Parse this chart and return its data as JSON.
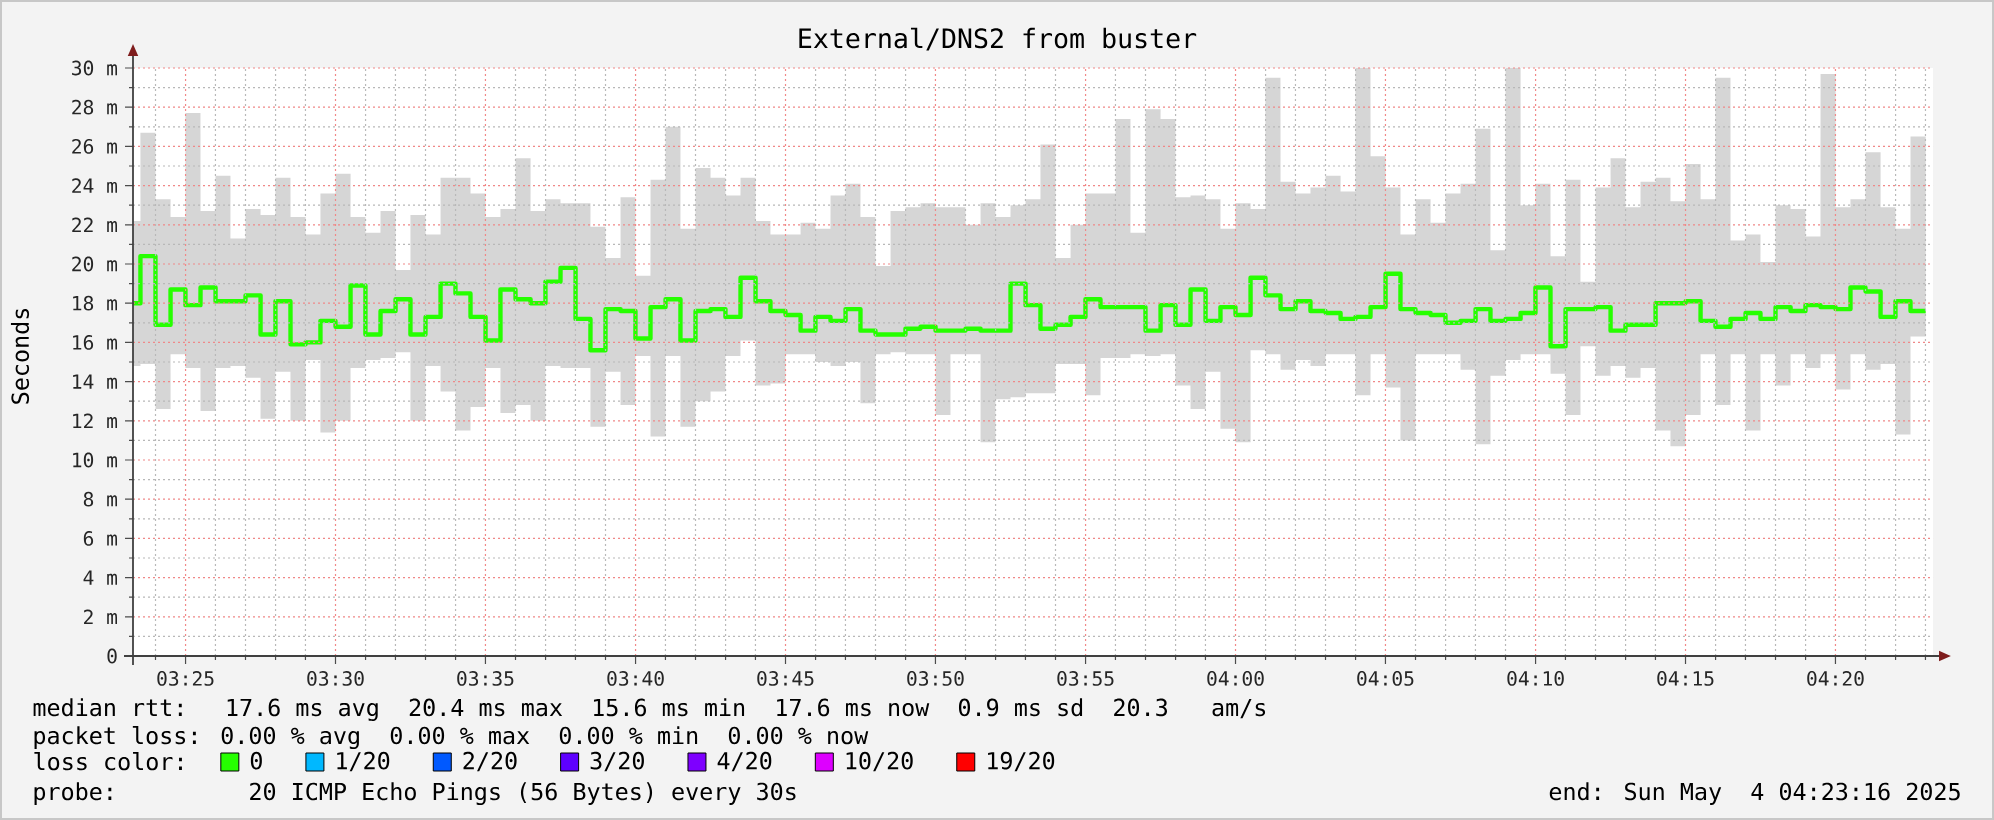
{
  "chart_data": {
    "type": "step",
    "title": "External/DNS2 from buster",
    "ylabel": "Seconds",
    "x": [
      3.3875,
      3.3958,
      3.4042,
      3.4125,
      3.4208,
      3.4292,
      3.4375,
      3.4458,
      3.4542,
      3.4625,
      3.4708,
      3.4792,
      3.4875,
      3.4958,
      3.5042,
      3.5125,
      3.5208,
      3.5292,
      3.5375,
      3.5458,
      3.5542,
      3.5625,
      3.5708,
      3.5792,
      3.5875,
      3.5958,
      3.6042,
      3.6125,
      3.6208,
      3.6292,
      3.6375,
      3.6458,
      3.6542,
      3.6625,
      3.6708,
      3.6792,
      3.6875,
      3.6958,
      3.7042,
      3.7125,
      3.7208,
      3.7292,
      3.7375,
      3.7458,
      3.7542,
      3.7625,
      3.7708,
      3.7792,
      3.7875,
      3.7958,
      3.8042,
      3.8125,
      3.8208,
      3.8292,
      3.8375,
      3.8458,
      3.8542,
      3.8625,
      3.8708,
      3.8792,
      3.8875,
      3.8958,
      3.9042,
      3.9125,
      3.9208,
      3.9292,
      3.9375,
      3.9458,
      3.9542,
      3.9625,
      3.9708,
      3.9792,
      3.9875,
      3.9958,
      4.0042,
      4.0125,
      4.0208,
      4.0292,
      4.0375,
      4.0458,
      4.0542,
      4.0625,
      4.0708,
      4.0792,
      4.0875,
      4.0958,
      4.1042,
      4.1125,
      4.1208,
      4.1292,
      4.1375,
      4.1458,
      4.1542,
      4.1625,
      4.1708,
      4.1792,
      4.1875,
      4.1958,
      4.2042,
      4.2125,
      4.2208,
      4.2292,
      4.2375,
      4.2458,
      4.2542,
      4.2625,
      4.2708,
      4.2792,
      4.2875,
      4.2958,
      4.3042,
      4.3125,
      4.3208,
      4.3292,
      4.3375,
      4.3458,
      4.3542,
      4.3625,
      4.3708,
      4.3792
    ],
    "xlim": [
      3.3875,
      4.3875
    ],
    "ylim": [
      0,
      30
    ],
    "xticks": [
      {
        "value": 3.4,
        "label": null
      },
      {
        "value": 3.4167,
        "label": "03:25"
      },
      {
        "value": 3.4333,
        "label": null
      },
      {
        "value": 3.45,
        "label": null
      },
      {
        "value": 3.4667,
        "label": null
      },
      {
        "value": 3.4833,
        "label": null
      },
      {
        "value": 3.5,
        "label": "03:30"
      },
      {
        "value": 3.5167,
        "label": null
      },
      {
        "value": 3.5333,
        "label": null
      },
      {
        "value": 3.55,
        "label": null
      },
      {
        "value": 3.5667,
        "label": null
      },
      {
        "value": 3.5833,
        "label": "03:35"
      },
      {
        "value": 3.6,
        "label": null
      },
      {
        "value": 3.6167,
        "label": null
      },
      {
        "value": 3.6333,
        "label": null
      },
      {
        "value": 3.65,
        "label": null
      },
      {
        "value": 3.6667,
        "label": "03:40"
      },
      {
        "value": 3.6833,
        "label": null
      },
      {
        "value": 3.7,
        "label": null
      },
      {
        "value": 3.7167,
        "label": null
      },
      {
        "value": 3.7333,
        "label": null
      },
      {
        "value": 3.75,
        "label": "03:45"
      },
      {
        "value": 3.7667,
        "label": null
      },
      {
        "value": 3.7833,
        "label": null
      },
      {
        "value": 3.8,
        "label": null
      },
      {
        "value": 3.8167,
        "label": null
      },
      {
        "value": 3.8333,
        "label": "03:50"
      },
      {
        "value": 3.85,
        "label": null
      },
      {
        "value": 3.8667,
        "label": null
      },
      {
        "value": 3.8833,
        "label": null
      },
      {
        "value": 3.9,
        "label": null
      },
      {
        "value": 3.9167,
        "label": "03:55"
      },
      {
        "value": 3.9333,
        "label": null
      },
      {
        "value": 3.95,
        "label": null
      },
      {
        "value": 3.9667,
        "label": null
      },
      {
        "value": 3.9833,
        "label": null
      },
      {
        "value": 4,
        "label": "04:00"
      },
      {
        "value": 4.0167,
        "label": null
      },
      {
        "value": 4.0333,
        "label": null
      },
      {
        "value": 4.05,
        "label": null
      },
      {
        "value": 4.0667,
        "label": null
      },
      {
        "value": 4.0833,
        "label": "04:05"
      },
      {
        "value": 4.1,
        "label": null
      },
      {
        "value": 4.1167,
        "label": null
      },
      {
        "value": 4.1333,
        "label": null
      },
      {
        "value": 4.15,
        "label": null
      },
      {
        "value": 4.1667,
        "label": "04:10"
      },
      {
        "value": 4.1833,
        "label": null
      },
      {
        "value": 4.2,
        "label": null
      },
      {
        "value": 4.2167,
        "label": null
      },
      {
        "value": 4.2333,
        "label": null
      },
      {
        "value": 4.25,
        "label": "04:15"
      },
      {
        "value": 4.2667,
        "label": null
      },
      {
        "value": 4.2833,
        "label": null
      },
      {
        "value": 4.3,
        "label": null
      },
      {
        "value": 4.3167,
        "label": null
      },
      {
        "value": 4.3333,
        "label": "04:20"
      },
      {
        "value": 4.35,
        "label": null
      },
      {
        "value": 4.3667,
        "label": null
      },
      {
        "value": 4.3833,
        "label": null
      }
    ],
    "yticks": [
      0,
      {
        "value": 1,
        "label": null
      },
      {
        "value": 2,
        "label": "2 m"
      },
      {
        "value": 3,
        "label": null
      },
      {
        "value": 4,
        "label": "4 m"
      },
      {
        "value": 5,
        "label": null
      },
      {
        "value": 6,
        "label": "6 m"
      },
      {
        "value": 7,
        "label": null
      },
      {
        "value": 8,
        "label": "8 m"
      },
      {
        "value": 9,
        "label": null
      },
      {
        "value": 10,
        "label": "10 m"
      },
      {
        "value": 11,
        "label": null
      },
      {
        "value": 12,
        "label": "12 m"
      },
      {
        "value": 13,
        "label": null
      },
      {
        "value": 14,
        "label": "14 m"
      },
      {
        "value": 15,
        "label": null
      },
      {
        "value": 16,
        "label": "16 m"
      },
      {
        "value": 17,
        "label": null
      },
      {
        "value": 18,
        "label": "18 m"
      },
      {
        "value": 19,
        "label": null
      },
      {
        "value": 20,
        "label": "20 m"
      },
      {
        "value": 21,
        "label": null
      },
      {
        "value": 22,
        "label": "22 m"
      },
      {
        "value": 23,
        "label": null
      },
      {
        "value": 24,
        "label": "24 m"
      },
      {
        "value": 25,
        "label": null
      },
      {
        "value": 26,
        "label": "26 m"
      },
      {
        "value": 27,
        "label": null
      },
      {
        "value": 28,
        "label": "28 m"
      },
      {
        "value": 29,
        "label": null
      },
      {
        "value": 30,
        "label": "30 m"
      }
    ],
    "grid": true,
    "legend": "bottom",
    "legend_title": "loss color:",
    "series": [
      {
        "name": "0",
        "color": "#26ff00",
        "values": [
          18.0,
          20.4,
          16.9,
          18.7,
          17.9,
          18.8,
          18.1,
          18.1,
          18.4,
          16.4,
          18.1,
          15.9,
          16.0,
          17.1,
          16.8,
          18.9,
          16.4,
          17.6,
          18.2,
          16.4,
          17.3,
          19.0,
          18.5,
          17.3,
          16.1,
          18.7,
          18.2,
          18.0,
          19.1,
          19.8,
          17.2,
          15.6,
          17.7,
          17.6,
          16.2,
          17.8,
          18.2,
          16.1,
          17.6,
          17.7,
          17.3,
          19.3,
          18.1,
          17.6,
          17.4,
          16.6,
          17.3,
          17.1,
          17.7,
          16.6,
          16.4,
          16.4,
          16.7,
          16.8,
          16.6,
          16.6,
          16.7,
          16.6,
          16.6,
          19.0,
          17.9,
          16.7,
          16.9,
          17.3,
          18.2,
          17.8,
          17.8,
          17.8,
          16.6,
          17.9,
          16.9,
          18.7,
          17.1,
          17.8,
          17.4,
          19.3,
          18.4,
          17.7,
          18.1,
          17.6,
          17.5,
          17.2,
          17.3,
          17.8,
          19.5,
          17.7,
          17.5,
          17.4,
          17.0,
          17.1,
          17.7,
          17.1,
          17.2,
          17.5,
          18.8,
          15.8,
          17.7,
          17.7,
          17.8,
          16.6,
          16.9,
          16.9,
          18.0,
          18.0,
          18.1,
          17.1,
          16.8,
          17.2,
          17.5,
          17.2,
          17.8,
          17.6,
          17.9,
          17.8,
          17.7,
          18.8,
          18.6,
          17.3,
          18.1,
          17.6
        ],
        "upper": [
          22.2,
          26.7,
          23.3,
          22.4,
          27.7,
          22.7,
          24.5,
          21.3,
          22.8,
          22.5,
          24.4,
          22.4,
          21.5,
          23.6,
          24.6,
          22.4,
          21.6,
          22.7,
          19.7,
          22.5,
          21.5,
          24.4,
          24.4,
          23.6,
          22.4,
          22.8,
          25.4,
          22.7,
          23.3,
          23.1,
          23.1,
          21.9,
          20.3,
          23.4,
          19.4,
          24.3,
          27.0,
          21.8,
          24.9,
          24.4,
          23.5,
          24.4,
          22.2,
          21.5,
          21.5,
          22.1,
          21.8,
          23.5,
          24.1,
          22.4,
          19.9,
          22.7,
          22.9,
          23.1,
          22.9,
          22.9,
          22.0,
          23.1,
          22.4,
          23.0,
          23.3,
          26.1,
          20.3,
          22.0,
          23.6,
          23.6,
          27.4,
          21.6,
          27.9,
          27.4,
          23.4,
          23.5,
          23.3,
          21.8,
          23.1,
          22.8,
          29.5,
          24.2,
          23.6,
          23.9,
          24.5,
          23.7,
          30.0,
          25.5,
          23.9,
          21.5,
          23.3,
          22.1,
          23.6,
          24.1,
          26.9,
          20.7,
          30.0,
          23.0,
          24.1,
          20.4,
          24.3,
          19.1,
          23.9,
          25.4,
          22.9,
          24.2,
          24.4,
          23.2,
          25.1,
          23.3,
          29.5,
          21.2,
          21.5,
          20.1,
          23.0,
          22.8,
          21.4,
          29.7,
          22.9,
          23.3,
          25.7,
          22.9,
          21.8,
          26.5
        ],
        "lower": [
          14.8,
          14.9,
          12.6,
          15.4,
          14.7,
          12.5,
          14.7,
          14.8,
          14.2,
          12.1,
          14.5,
          12.0,
          15.1,
          11.4,
          12.0,
          14.7,
          15.1,
          15.2,
          15.5,
          12.0,
          14.8,
          13.5,
          11.5,
          12.7,
          14.7,
          12.4,
          12.8,
          12.0,
          14.8,
          14.7,
          14.7,
          11.7,
          14.5,
          12.8,
          15.3,
          11.2,
          15.3,
          11.7,
          13.0,
          13.5,
          15.3,
          16.1,
          13.8,
          13.9,
          15.4,
          15.4,
          15.0,
          14.8,
          15.0,
          12.9,
          15.4,
          15.5,
          15.4,
          15.4,
          12.3,
          15.4,
          15.4,
          10.9,
          13.1,
          13.2,
          13.4,
          13.4,
          14.9,
          14.9,
          13.3,
          15.2,
          15.2,
          15.4,
          15.3,
          15.4,
          13.8,
          12.6,
          14.5,
          11.6,
          10.9,
          15.6,
          15.4,
          14.6,
          15.1,
          14.8,
          15.4,
          15.4,
          13.3,
          15.4,
          13.7,
          11.0,
          15.4,
          15.4,
          15.4,
          14.6,
          10.8,
          14.3,
          15.1,
          15.4,
          15.4,
          14.4,
          12.3,
          15.8,
          14.3,
          14.8,
          14.2,
          14.7,
          11.5,
          10.7,
          12.3,
          15.4,
          12.8,
          15.4,
          11.5,
          15.4,
          13.8,
          15.4,
          14.7,
          15.4,
          13.6,
          15.4,
          14.6,
          14.9,
          11.3,
          16.3
        ]
      },
      {
        "name": "1/20",
        "color": "#00b8ff",
        "values": [
          null,
          null,
          null,
          null,
          null,
          null,
          null,
          null,
          null,
          null,
          null,
          null,
          null,
          null,
          null,
          null,
          null,
          null,
          null,
          null,
          null,
          null,
          null,
          null,
          null,
          null,
          null,
          null,
          null,
          null,
          null,
          null,
          null,
          null,
          null,
          null,
          null,
          null,
          null,
          null,
          null,
          null,
          null,
          null,
          null,
          null,
          null,
          null,
          null,
          null,
          null,
          null,
          null,
          null,
          null,
          null,
          null,
          null,
          null,
          null,
          null,
          null,
          null,
          null,
          null,
          null,
          null,
          null,
          null,
          null,
          null,
          null,
          null,
          null,
          null,
          null,
          null,
          null,
          null,
          null,
          null,
          null,
          null,
          null,
          null,
          null,
          null,
          null,
          null,
          null,
          null,
          null,
          null,
          null,
          null,
          null,
          null,
          null,
          null,
          null,
          null,
          null,
          null,
          null,
          null,
          null,
          null,
          null,
          null,
          null,
          null,
          null,
          null,
          null,
          null,
          null,
          null,
          null,
          null,
          null
        ]
      },
      {
        "name": "2/20",
        "color": "#0059ff",
        "values": [
          null,
          null,
          null,
          null,
          null,
          null,
          null,
          null,
          null,
          null,
          null,
          null,
          null,
          null,
          null,
          null,
          null,
          null,
          null,
          null,
          null,
          null,
          null,
          null,
          null,
          null,
          null,
          null,
          null,
          null,
          null,
          null,
          null,
          null,
          null,
          null,
          null,
          null,
          null,
          null,
          null,
          null,
          null,
          null,
          null,
          null,
          null,
          null,
          null,
          null,
          null,
          null,
          null,
          null,
          null,
          null,
          null,
          null,
          null,
          null,
          null,
          null,
          null,
          null,
          null,
          null,
          null,
          null,
          null,
          null,
          null,
          null,
          null,
          null,
          null,
          null,
          null,
          null,
          null,
          null,
          null,
          null,
          null,
          null,
          null,
          null,
          null,
          null,
          null,
          null,
          null,
          null,
          null,
          null,
          null,
          null,
          null,
          null,
          null,
          null,
          null,
          null,
          null,
          null,
          null,
          null,
          null,
          null,
          null,
          null,
          null,
          null,
          null,
          null,
          null,
          null,
          null,
          null,
          null,
          null
        ]
      },
      {
        "name": "3/20",
        "color": "#5e00ff",
        "values": [
          null,
          null,
          null,
          null,
          null,
          null,
          null,
          null,
          null,
          null,
          null,
          null,
          null,
          null,
          null,
          null,
          null,
          null,
          null,
          null,
          null,
          null,
          null,
          null,
          null,
          null,
          null,
          null,
          null,
          null,
          null,
          null,
          null,
          null,
          null,
          null,
          null,
          null,
          null,
          null,
          null,
          null,
          null,
          null,
          null,
          null,
          null,
          null,
          null,
          null,
          null,
          null,
          null,
          null,
          null,
          null,
          null,
          null,
          null,
          null,
          null,
          null,
          null,
          null,
          null,
          null,
          null,
          null,
          null,
          null,
          null,
          null,
          null,
          null,
          null,
          null,
          null,
          null,
          null,
          null,
          null,
          null,
          null,
          null,
          null,
          null,
          null,
          null,
          null,
          null,
          null,
          null,
          null,
          null,
          null,
          null,
          null,
          null,
          null,
          null,
          null,
          null,
          null,
          null,
          null,
          null,
          null,
          null,
          null,
          null,
          null,
          null,
          null,
          null,
          null,
          null,
          null,
          null,
          null,
          null
        ]
      },
      {
        "name": "4/20",
        "color": "#7e00ff",
        "values": [
          null,
          null,
          null,
          null,
          null,
          null,
          null,
          null,
          null,
          null,
          null,
          null,
          null,
          null,
          null,
          null,
          null,
          null,
          null,
          null,
          null,
          null,
          null,
          null,
          null,
          null,
          null,
          null,
          null,
          null,
          null,
          null,
          null,
          null,
          null,
          null,
          null,
          null,
          null,
          null,
          null,
          null,
          null,
          null,
          null,
          null,
          null,
          null,
          null,
          null,
          null,
          null,
          null,
          null,
          null,
          null,
          null,
          null,
          null,
          null,
          null,
          null,
          null,
          null,
          null,
          null,
          null,
          null,
          null,
          null,
          null,
          null,
          null,
          null,
          null,
          null,
          null,
          null,
          null,
          null,
          null,
          null,
          null,
          null,
          null,
          null,
          null,
          null,
          null,
          null,
          null,
          null,
          null,
          null,
          null,
          null,
          null,
          null,
          null,
          null,
          null,
          null,
          null,
          null,
          null,
          null,
          null,
          null,
          null,
          null,
          null,
          null,
          null,
          null,
          null,
          null,
          null,
          null,
          null,
          null
        ]
      },
      {
        "name": "10/20",
        "color": "#dd00ff",
        "values": [
          null,
          null,
          null,
          null,
          null,
          null,
          null,
          null,
          null,
          null,
          null,
          null,
          null,
          null,
          null,
          null,
          null,
          null,
          null,
          null,
          null,
          null,
          null,
          null,
          null,
          null,
          null,
          null,
          null,
          null,
          null,
          null,
          null,
          null,
          null,
          null,
          null,
          null,
          null,
          null,
          null,
          null,
          null,
          null,
          null,
          null,
          null,
          null,
          null,
          null,
          null,
          null,
          null,
          null,
          null,
          null,
          null,
          null,
          null,
          null,
          null,
          null,
          null,
          null,
          null,
          null,
          null,
          null,
          null,
          null,
          null,
          null,
          null,
          null,
          null,
          null,
          null,
          null,
          null,
          null,
          null,
          null,
          null,
          null,
          null,
          null,
          null,
          null,
          null,
          null,
          null,
          null,
          null,
          null,
          null,
          null,
          null,
          null,
          null,
          null,
          null,
          null,
          null,
          null,
          null,
          null,
          null,
          null,
          null,
          null,
          null,
          null,
          null,
          null,
          null,
          null,
          null,
          null,
          null,
          null
        ]
      },
      {
        "name": "19/20",
        "color": "#ff0000",
        "values": [
          null,
          null,
          null,
          null,
          null,
          null,
          null,
          null,
          null,
          null,
          null,
          null,
          null,
          null,
          null,
          null,
          null,
          null,
          null,
          null,
          null,
          null,
          null,
          null,
          null,
          null,
          null,
          null,
          null,
          null,
          null,
          null,
          null,
          null,
          null,
          null,
          null,
          null,
          null,
          null,
          null,
          null,
          null,
          null,
          null,
          null,
          null,
          null,
          null,
          null,
          null,
          null,
          null,
          null,
          null,
          null,
          null,
          null,
          null,
          null,
          null,
          null,
          null,
          null,
          null,
          null,
          null,
          null,
          null,
          null,
          null,
          null,
          null,
          null,
          null,
          null,
          null,
          null,
          null,
          null,
          null,
          null,
          null,
          null,
          null,
          null,
          null,
          null,
          null,
          null,
          null,
          null,
          null,
          null,
          null,
          null,
          null,
          null,
          null,
          null,
          null,
          null,
          null,
          null,
          null,
          null,
          null,
          null,
          null,
          null,
          null,
          null,
          null,
          null,
          null,
          null,
          null,
          null,
          null,
          null
        ]
      }
    ],
    "annotations": [
      "median rtt:  17.6 ms avg  20.4 ms max  15.6 ms min  17.6 ms now  0.9 ms sd  20.3   am/s",
      "packet loss: 0.00 % avg  0.00 % max  0.00 % min  0.00 % now",
      "probe:       20 ICMP Echo Pings (56 Bytes) every 30s",
      "end: Sun May  4 04:23:16 2025"
    ]
  }
}
